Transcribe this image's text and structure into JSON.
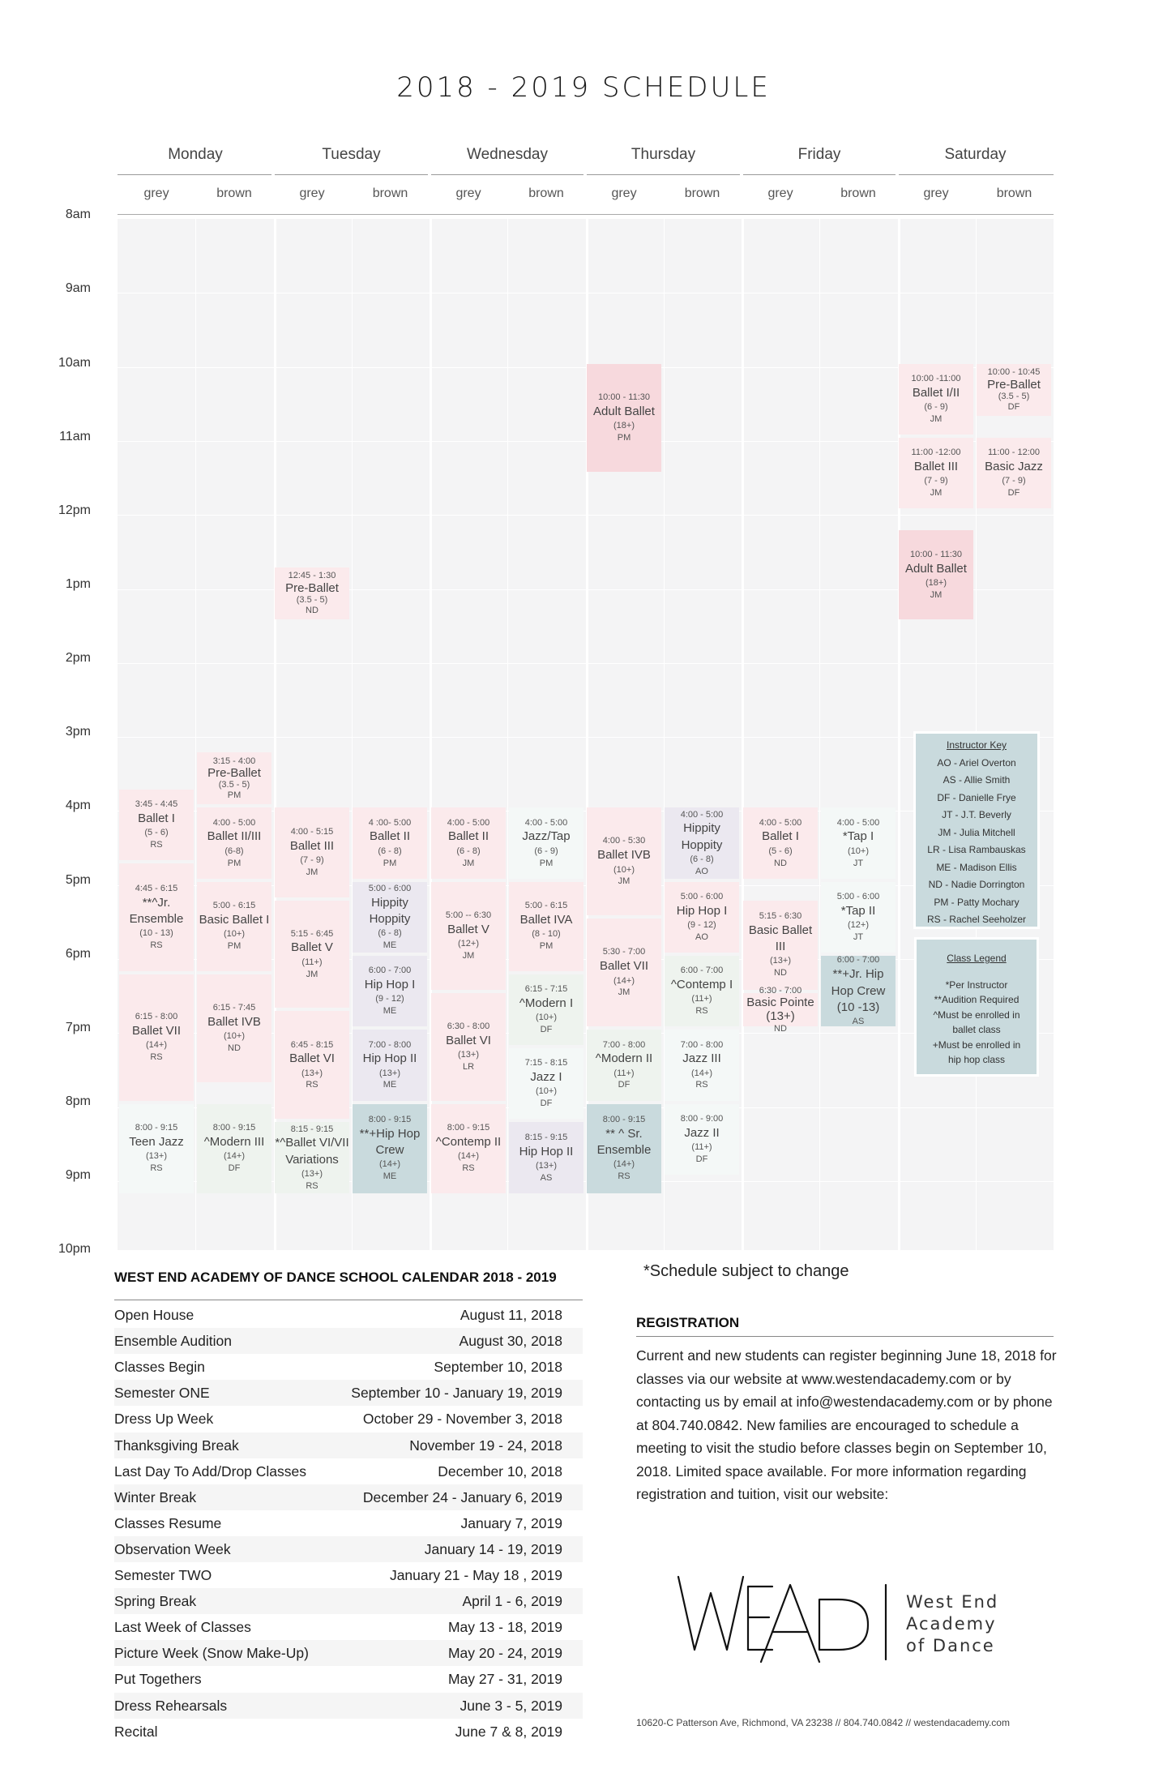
{
  "title": "2018 - 2019 SCHEDULE",
  "days": [
    "Monday",
    "Tuesday",
    "Wednesday",
    "Thursday",
    "Friday",
    "Saturday"
  ],
  "rooms": [
    "grey",
    "brown",
    "grey",
    "brown",
    "grey",
    "brown",
    "grey",
    "brown",
    "grey",
    "brown",
    "grey",
    "brown"
  ],
  "times": [
    "8am",
    "9am",
    "10am",
    "11am",
    "12pm",
    "1pm",
    "2pm",
    "3pm",
    "4pm",
    "5pm",
    "6pm",
    "7pm",
    "8pm",
    "9pm",
    "10pm"
  ],
  "classes": [
    {
      "time": "3:45 - 4:45",
      "name": "Ballet I",
      "ages": "(5 - 6)",
      "instructor": "RS"
    },
    {
      "time": "4:45 - 6:15",
      "name": "**^Jr. Ensemble",
      "ages": "(10 - 13)",
      "instructor": "RS"
    },
    {
      "time": "6:15 - 8:00",
      "name": "Ballet VII",
      "ages": "(14+)",
      "instructor": "RS"
    },
    {
      "time": "8:00 - 9:15",
      "name": "Teen Jazz",
      "ages": "(13+)",
      "instructor": "RS"
    },
    {
      "time": "3:15 - 4:00",
      "name": "Pre-Ballet",
      "ages": "(3.5 - 5)",
      "instructor": "PM"
    },
    {
      "time": "4:00 - 5:00",
      "name": "Ballet II/III",
      "ages": "(6-8)",
      "instructor": "PM"
    },
    {
      "time": "5:00 - 6:15",
      "name": "Basic Ballet I",
      "ages": "(10+)",
      "instructor": "PM"
    },
    {
      "time": "6:15 - 7:45",
      "name": "Ballet IVB",
      "ages": "(10+)",
      "instructor": "ND"
    },
    {
      "time": "8:00 - 9:15",
      "name": "^Modern III",
      "ages": "(14+)",
      "instructor": "DF"
    },
    {
      "time": "12:45 - 1:30",
      "name": "Pre-Ballet",
      "ages": "(3.5 - 5)",
      "instructor": "ND"
    },
    {
      "time": "4:00 - 5:15",
      "name": "Ballet III",
      "ages": "(7 - 9)",
      "instructor": "JM"
    },
    {
      "time": "5:15 - 6:45",
      "name": "Ballet V",
      "ages": "(11+)",
      "instructor": "JM"
    },
    {
      "time": "6:45 - 8:15",
      "name": "Ballet VI",
      "ages": "(13+)",
      "instructor": "RS"
    },
    {
      "time": "8:15 - 9:15",
      "name": "*^Ballet VI/VII Variations",
      "ages": "(13+)",
      "instructor": "RS"
    },
    {
      "time": "4 :00- 5:00",
      "name": "Ballet II",
      "ages": "(6 - 8)",
      "instructor": "PM"
    },
    {
      "time": "5:00 - 6:00",
      "name": "Hippity Hoppity",
      "ages": "(6 - 8)",
      "instructor": "ME"
    },
    {
      "time": "6:00 - 7:00",
      "name": "Hip Hop I",
      "ages": "(9 - 12)",
      "instructor": "ME"
    },
    {
      "time": "7:00 - 8:00",
      "name": "Hip Hop II",
      "ages": "(13+)",
      "instructor": "ME"
    },
    {
      "time": "8:00 - 9:15",
      "name": "**+Hip Hop Crew",
      "ages": "(14+)",
      "instructor": "ME"
    },
    {
      "time": "4:00 - 5:00",
      "name": "Ballet II",
      "ages": "(6 - 8)",
      "instructor": "JM"
    },
    {
      "time": "5:00 -- 6:30",
      "name": "Ballet V",
      "ages": "(12+)",
      "instructor": "JM"
    },
    {
      "time": "6:30 - 8:00",
      "name": "Ballet VI",
      "ages": "(13+)",
      "instructor": "LR"
    },
    {
      "time": "8:00 - 9:15",
      "name": "^Contemp II",
      "ages": "(14+)",
      "instructor": "RS"
    },
    {
      "time": "4:00 - 5:00",
      "name": "Jazz/Tap",
      "ages": "(6 - 9)",
      "instructor": "PM"
    },
    {
      "time": "5:00 - 6:15",
      "name": "Ballet IVA",
      "ages": "(8 - 10)",
      "instructor": "PM"
    },
    {
      "time": "6:15 - 7:15",
      "name": "^Modern I",
      "ages": "(10+)",
      "instructor": "DF"
    },
    {
      "time": "7:15 - 8:15",
      "name": "Jazz I",
      "ages": "(10+)",
      "instructor": "DF"
    },
    {
      "time": "8:15 - 9:15",
      "name": "Hip Hop II",
      "ages": "(13+)",
      "instructor": "AS"
    },
    {
      "time": "10:00 - 11:30",
      "name": "Adult Ballet",
      "ages": "(18+)",
      "instructor": "PM"
    },
    {
      "time": "4:00 - 5:30",
      "name": "Ballet IVB",
      "ages": "(10+)",
      "instructor": "JM"
    },
    {
      "time": "5:30 - 7:00",
      "name": "Ballet VII",
      "ages": "(14+)",
      "instructor": "JM"
    },
    {
      "time": "7:00 - 8:00",
      "name": "^Modern II",
      "ages": "(11+)",
      "instructor": "DF"
    },
    {
      "time": "8:00 - 9:15",
      "name": "** ^ Sr. Ensemble",
      "ages": "(14+)",
      "instructor": "RS"
    },
    {
      "time": "4:00 - 5:00",
      "name": "Hippity Hoppity",
      "ages": "(6 - 8)",
      "instructor": "AO"
    },
    {
      "time": "5:00 - 6:00",
      "name": "Hip Hop I",
      "ages": "(9 - 12)",
      "instructor": "AO"
    },
    {
      "time": "6:00 - 7:00",
      "name": "^Contemp I",
      "ages": "(11+)",
      "instructor": "RS"
    },
    {
      "time": "7:00 - 8:00",
      "name": "Jazz III",
      "ages": "(14+)",
      "instructor": "RS"
    },
    {
      "time": "8:00 - 9:00",
      "name": "Jazz II",
      "ages": "(11+)",
      "instructor": "DF"
    },
    {
      "time": "4:00 - 5:00",
      "name": "Ballet I",
      "ages": "(5 - 6)",
      "instructor": "ND"
    },
    {
      "time": "5:15 - 6:30",
      "name": "Basic Ballet III",
      "ages": "(13+)",
      "instructor": "ND"
    },
    {
      "time": "6:30 - 7:00",
      "name": "Basic Pointe (13+)",
      "ages": "",
      "instructor": "ND"
    },
    {
      "time": "4:00 - 5:00",
      "name": "*Tap I",
      "ages": "(10+)",
      "instructor": "JT"
    },
    {
      "time": "5:00 - 6:00",
      "name": "*Tap II",
      "ages": "(12+)",
      "instructor": "JT"
    },
    {
      "time": "6:00 - 7:00",
      "name": "**+Jr. Hip Hop Crew (10 -13)",
      "ages": "",
      "instructor": "AS"
    },
    {
      "time": "10:00 -11:00",
      "name": "Ballet I/II",
      "ages": "(6 - 9)",
      "instructor": "JM"
    },
    {
      "time": "11:00 -12:00",
      "name": "Ballet III",
      "ages": "(7 - 9)",
      "instructor": "JM"
    },
    {
      "time": "10:00 - 11:30",
      "name": "Adult Ballet",
      "ages": "(18+)",
      "instructor": "JM"
    },
    {
      "time": "10:00 - 10:45",
      "name": "Pre-Ballet",
      "ages": "(3.5 - 5)",
      "instructor": "DF"
    },
    {
      "time": "11:00 - 12:00",
      "name": "Basic Jazz",
      "ages": "(7 - 9)",
      "instructor": "DF"
    }
  ],
  "instructor_key": {
    "title": "Instructor Key",
    "entries": [
      "AO - Ariel Overton",
      "AS - Allie Smith",
      "DF - Danielle Frye",
      "JT - J.T. Beverly",
      "JM - Julia Mitchell",
      "LR - Lisa Rambauskas",
      "ME - Madison Ellis",
      "ND - Nadie Dorrington",
      "PM - Patty Mochary",
      "RS - Rachel Seeholzer"
    ]
  },
  "class_legend": {
    "title": "Class Legend",
    "entries": [
      "*Per Instructor",
      "**Audition Required",
      "^Must be enrolled in",
      "ballet class",
      "+Must be enrolled in",
      "hip hop class"
    ]
  },
  "calendar": {
    "title": "WEST END ACADEMY OF DANCE SCHOOL CALENDAR 2018 - 2019",
    "rows": [
      {
        "label": "Open House",
        "value": "August 11, 2018"
      },
      {
        "label": "Ensemble Audition",
        "value": "August 30, 2018"
      },
      {
        "label": "Classes Begin",
        "value": "September 10, 2018"
      },
      {
        "label": "Semester ONE",
        "value": "September 10 - January 19, 2019"
      },
      {
        "label": "Dress Up Week",
        "value": "October 29 - November 3, 2018"
      },
      {
        "label": "Thanksgiving Break",
        "value": "November 19 - 24, 2018"
      },
      {
        "label": "Last Day To Add/Drop Classes",
        "value": "December 10, 2018"
      },
      {
        "label": "Winter Break",
        "value": "December 24 - January 6, 2019"
      },
      {
        "label": "Classes Resume",
        "value": "January 7, 2019"
      },
      {
        "label": "Observation Week",
        "value": "January 14 - 19, 2019"
      },
      {
        "label": "Semester TWO",
        "value": "January 21 - May 18 , 2019"
      },
      {
        "label": "Spring Break",
        "value": "April 1 - 6, 2019"
      },
      {
        "label": "Last Week of Classes",
        "value": "May 13 - 18, 2019"
      },
      {
        "label": "Picture Week (Snow Make-Up)",
        "value": "May 20 - 24, 2019"
      },
      {
        "label": "Put Togethers",
        "value": "May 27 - 31, 2019"
      },
      {
        "label": "Dress Rehearsals",
        "value": "June 3 - 5, 2019"
      },
      {
        "label": "Recital",
        "value": "June 7 & 8, 2019"
      }
    ]
  },
  "note": "*Schedule subject to change",
  "registration": {
    "title": "REGISTRATION",
    "body": "Current and new students can register beginning June 18, 2018 for classes via our website at www.westendacademy.com or by contacting us by email at info@westendacademy.com or by phone at 804.740.0842. New families are encouraged to schedule a meeting to visit the studio before classes begin on September 10, 2018. Limited space available. For more information regarding registration and tuition, visit our website:"
  },
  "logo": {
    "mark": "WEAD",
    "lines": [
      "West End",
      "Academy",
      "of Dance"
    ]
  },
  "address": "10620-C Patterson Ave, Richmond, VA 23238  //  804.740.0842  //  westendacademy.com",
  "colors": {
    "pink": "#fbeaec",
    "rose": "#f7d9dd",
    "lavender": "#ebe8f0",
    "mint": "#eef3ee",
    "teal": "#c9dadd",
    "grid": "#f4f4f5"
  }
}
